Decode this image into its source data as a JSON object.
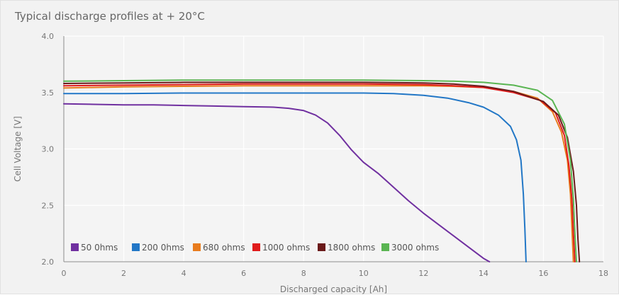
{
  "chart_data": {
    "type": "line",
    "title": "Typical discharge profiles at + 20°C",
    "xlabel": "Discharged capacity [Ah]",
    "ylabel": "Cell Voltage [V]",
    "xlim": [
      0,
      18
    ],
    "ylim": [
      2.0,
      4.0
    ],
    "x_ticks": [
      0,
      2,
      4,
      6,
      8,
      10,
      12,
      14,
      16,
      18
    ],
    "y_ticks": [
      2.0,
      2.5,
      3.0,
      3.5,
      4.0
    ],
    "y_tick_labels": [
      "2.0",
      "2.5",
      "3.0",
      "3.5",
      "4.0"
    ],
    "grid": true,
    "legend_position": "bottom-left",
    "series": [
      {
        "name": "50 0hms",
        "color": "#7030a0",
        "x": [
          0,
          1,
          2,
          3,
          4,
          5,
          6,
          7,
          7.5,
          8,
          8.4,
          8.8,
          9.2,
          9.6,
          10,
          10.5,
          11,
          11.5,
          12,
          12.5,
          13,
          13.5,
          14,
          14.2
        ],
        "y": [
          3.4,
          3.395,
          3.39,
          3.39,
          3.385,
          3.38,
          3.375,
          3.37,
          3.36,
          3.34,
          3.3,
          3.23,
          3.12,
          2.99,
          2.88,
          2.78,
          2.66,
          2.54,
          2.43,
          2.33,
          2.23,
          2.13,
          2.03,
          2.0
        ]
      },
      {
        "name": "200 0hms",
        "color": "#2277c6",
        "x": [
          0,
          2,
          4,
          6,
          8,
          10,
          11,
          12,
          12.8,
          13.5,
          14,
          14.5,
          14.9,
          15.1,
          15.25,
          15.33,
          15.38,
          15.42
        ],
        "y": [
          3.49,
          3.49,
          3.495,
          3.495,
          3.495,
          3.495,
          3.49,
          3.475,
          3.45,
          3.41,
          3.37,
          3.3,
          3.2,
          3.08,
          2.9,
          2.6,
          2.3,
          2.0
        ]
      },
      {
        "name": "680 ohms",
        "color": "#e87c1e",
        "x": [
          0,
          2,
          4,
          6,
          8,
          10,
          12,
          13,
          14,
          15,
          15.8,
          16.3,
          16.6,
          16.8,
          16.9,
          16.95,
          17.0
        ],
        "y": [
          3.54,
          3.55,
          3.555,
          3.56,
          3.56,
          3.56,
          3.56,
          3.555,
          3.545,
          3.51,
          3.45,
          3.33,
          3.15,
          2.9,
          2.6,
          2.3,
          2.0
        ]
      },
      {
        "name": "1000 ohms",
        "color": "#e01b1b",
        "x": [
          0,
          2,
          4,
          6,
          8,
          10,
          12,
          13,
          14,
          15,
          15.9,
          16.4,
          16.7,
          16.85,
          16.95,
          17.0,
          17.05
        ],
        "y": [
          3.56,
          3.565,
          3.57,
          3.575,
          3.575,
          3.575,
          3.57,
          3.56,
          3.545,
          3.5,
          3.43,
          3.32,
          3.12,
          2.85,
          2.55,
          2.25,
          2.0
        ]
      },
      {
        "name": "1800 ohms",
        "color": "#6b1a1a",
        "x": [
          0,
          2,
          4,
          6,
          8,
          10,
          12,
          13,
          14,
          15,
          16,
          16.5,
          16.8,
          17.0,
          17.1,
          17.15,
          17.2
        ],
        "y": [
          3.58,
          3.585,
          3.59,
          3.59,
          3.59,
          3.59,
          3.585,
          3.575,
          3.555,
          3.51,
          3.42,
          3.3,
          3.1,
          2.8,
          2.5,
          2.2,
          2.0
        ]
      },
      {
        "name": "3000 ohms",
        "color": "#5ab552",
        "x": [
          0,
          2,
          4,
          6,
          8,
          10,
          12,
          13,
          14,
          15,
          15.8,
          16.3,
          16.7,
          16.9,
          17.0,
          17.05,
          17.1
        ],
        "y": [
          3.6,
          3.605,
          3.61,
          3.61,
          3.61,
          3.61,
          3.605,
          3.6,
          3.59,
          3.565,
          3.52,
          3.43,
          3.22,
          2.9,
          2.55,
          2.25,
          2.0
        ]
      }
    ]
  }
}
